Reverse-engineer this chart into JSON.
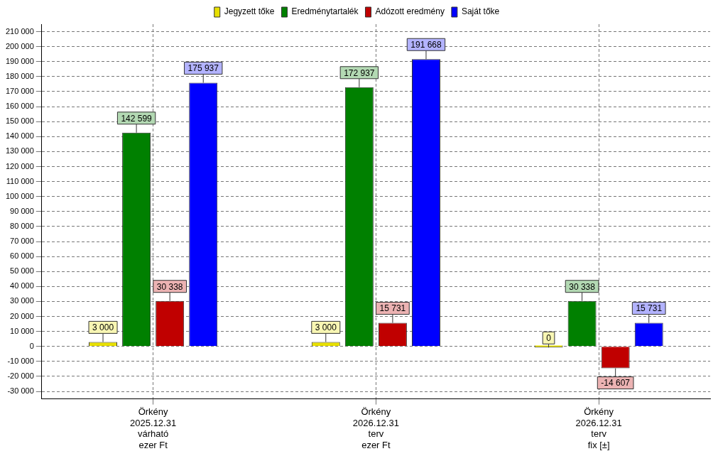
{
  "chart_data": {
    "type": "bar",
    "categories": [
      "Örkény\n2025.12.31\nvárható\nezer Ft",
      "Örkény\n2026.12.31\nterv\nezer Ft",
      "Örkény\n2026.12.31\nterv\nfix [±]"
    ],
    "series": [
      {
        "name": "Jegyzett tőke",
        "color": "#e8e000",
        "values": [
          3000,
          3000,
          0
        ],
        "value_labels": [
          "3 000",
          "3 000",
          "0"
        ]
      },
      {
        "name": "Eredménytartalék",
        "color": "#008000",
        "values": [
          142599,
          172937,
          30338
        ],
        "value_labels": [
          "142 599",
          "172 937",
          "30 338"
        ]
      },
      {
        "name": "Adózott eredmény",
        "color": "#c00000",
        "values": [
          30338,
          15731,
          -14607
        ],
        "value_labels": [
          "30 338",
          "15 731",
          "-14 607"
        ]
      },
      {
        "name": "Saját tőke",
        "color": "#0000ff",
        "values": [
          175937,
          191668,
          15731
        ],
        "value_labels": [
          "175 937",
          "191 668",
          "15 731"
        ]
      }
    ],
    "ylim": [
      -35000,
      215000
    ],
    "yticks": [
      {
        "value": -30000,
        "label": "-30 000"
      },
      {
        "value": -20000,
        "label": "-20 000"
      },
      {
        "value": -10000,
        "label": "-10 000"
      },
      {
        "value": 0,
        "label": "0"
      },
      {
        "value": 10000,
        "label": "10 000"
      },
      {
        "value": 20000,
        "label": "20 000"
      },
      {
        "value": 30000,
        "label": "30 000"
      },
      {
        "value": 40000,
        "label": "40 000"
      },
      {
        "value": 50000,
        "label": "50 000"
      },
      {
        "value": 60000,
        "label": "60 000"
      },
      {
        "value": 70000,
        "label": "70 000"
      },
      {
        "value": 80000,
        "label": "80 000"
      },
      {
        "value": 90000,
        "label": "90 000"
      },
      {
        "value": 100000,
        "label": "100 000"
      },
      {
        "value": 110000,
        "label": "110 000"
      },
      {
        "value": 120000,
        "label": "120 000"
      },
      {
        "value": 130000,
        "label": "130 000"
      },
      {
        "value": 140000,
        "label": "140 000"
      },
      {
        "value": 150000,
        "label": "150 000"
      },
      {
        "value": 160000,
        "label": "160 000"
      },
      {
        "value": 170000,
        "label": "170 000"
      },
      {
        "value": 180000,
        "label": "180 000"
      },
      {
        "value": 190000,
        "label": "190 000"
      },
      {
        "value": 200000,
        "label": "200 000"
      },
      {
        "value": 210000,
        "label": "210 000"
      }
    ],
    "grid": true,
    "legend": "top"
  }
}
